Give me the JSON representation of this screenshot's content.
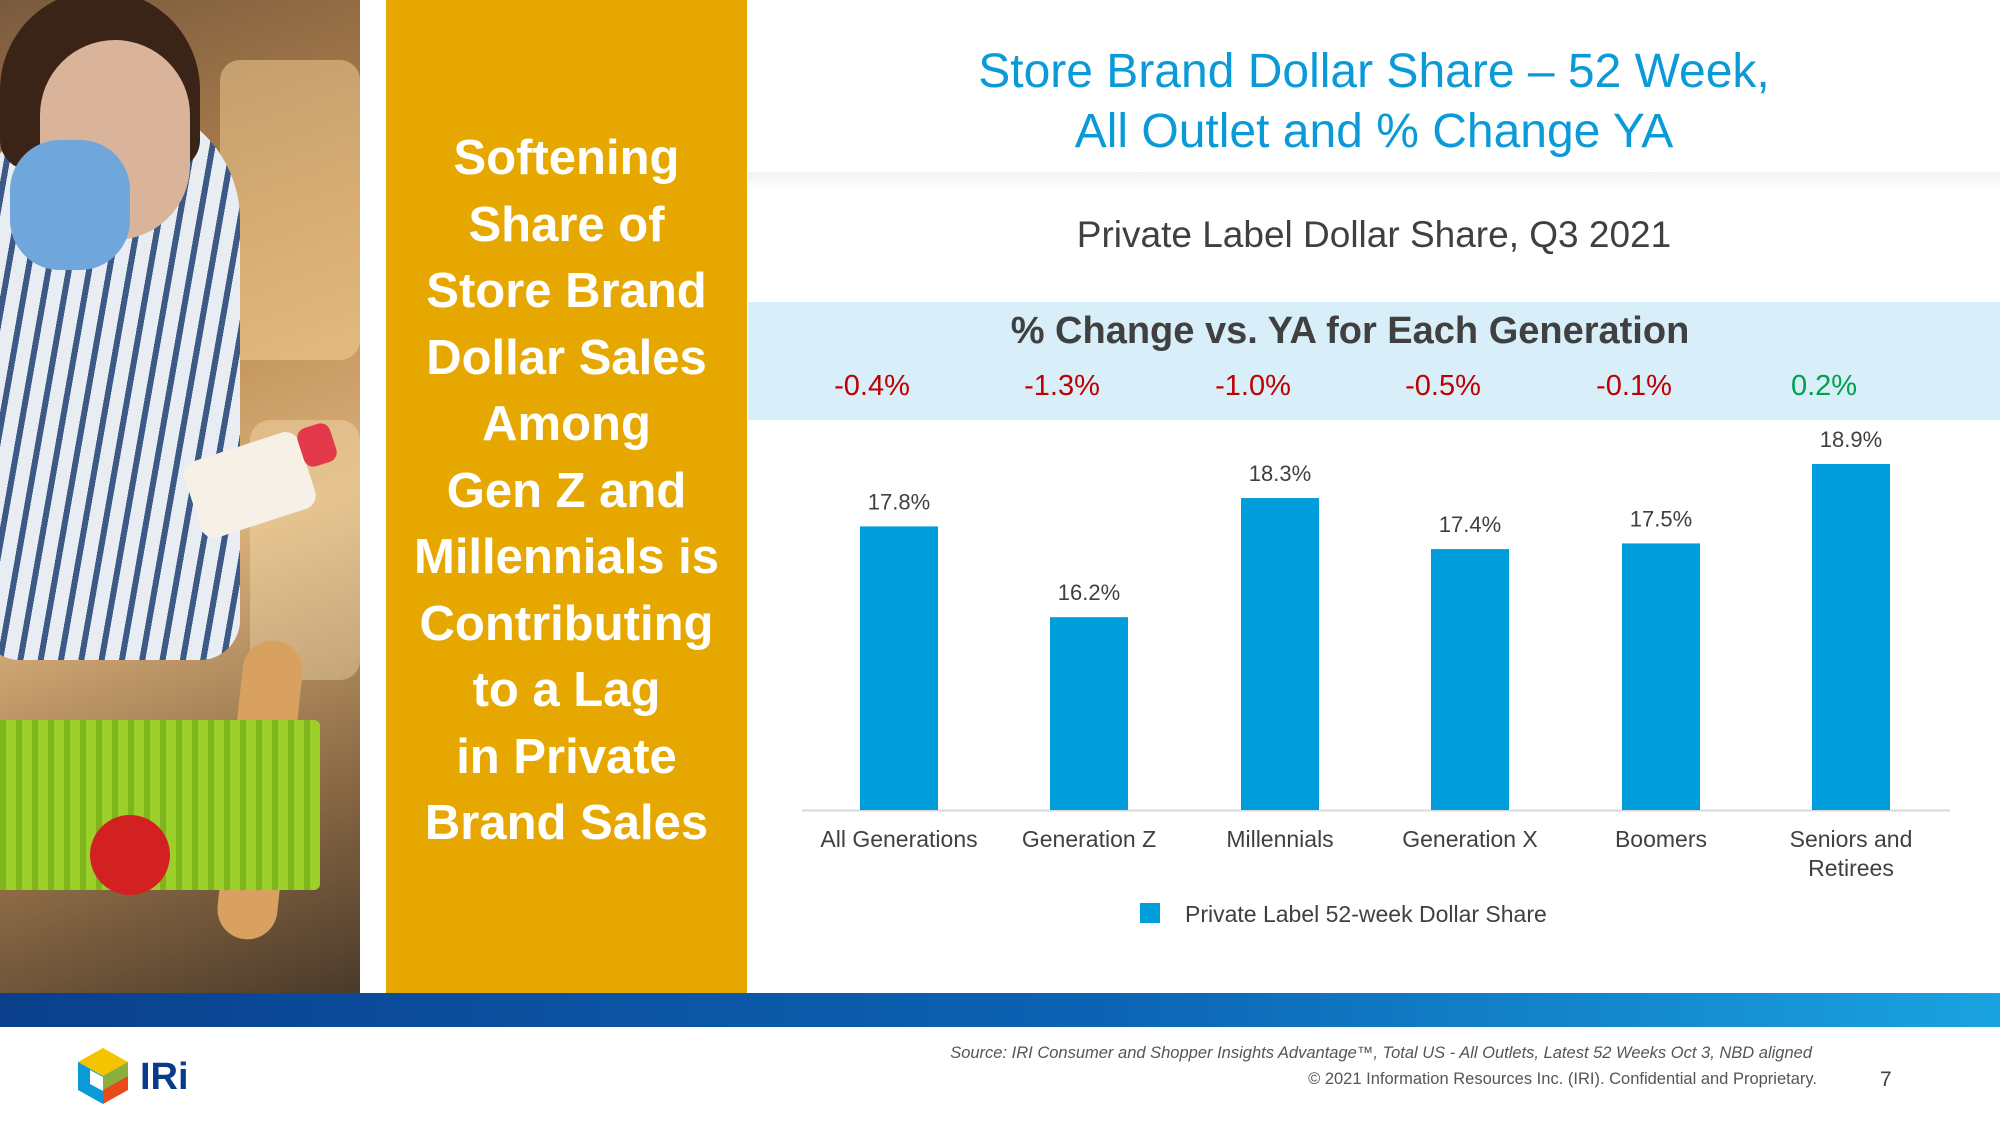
{
  "sidebar": {
    "headline_lines": [
      "Softening",
      "Share of",
      "Store Brand",
      "Dollar Sales",
      "Among",
      "Gen Z and",
      "Millennials is",
      "Contributing",
      "to a Lag",
      "in Private",
      "Brand Sales"
    ]
  },
  "header": {
    "title_line1": "Store Brand Dollar Share – 52 Week,",
    "title_line2": "All Outlet and % Change YA"
  },
  "change_band": {
    "title": "% Change vs. YA for Each Generation",
    "values": [
      "-0.4%",
      "-1.3%",
      "-1.0%",
      "-0.5%",
      "-0.1%",
      "0.2%"
    ]
  },
  "colors": {
    "bar": "#009ddc",
    "negative": "#c00000",
    "positive": "#00a050",
    "accent": "#e6a800"
  },
  "chart_data": {
    "type": "bar",
    "title": "Private Label Dollar Share, Q3 2021",
    "categories": [
      "All Generations",
      "Generation Z",
      "Millennials",
      "Generation X",
      "Boomers",
      "Seniors and Retirees"
    ],
    "category_lines": [
      [
        "All Generations"
      ],
      [
        "Generation Z"
      ],
      [
        "Millennials"
      ],
      [
        "Generation X"
      ],
      [
        "Boomers"
      ],
      [
        "Seniors and",
        "Retirees"
      ]
    ],
    "series": [
      {
        "name": "Private Label 52-week Dollar Share",
        "values": [
          17.8,
          16.2,
          18.3,
          17.4,
          17.5,
          18.9
        ]
      }
    ],
    "data_labels": [
      "17.8%",
      "16.2%",
      "18.3%",
      "17.4%",
      "17.5%",
      "18.9%"
    ],
    "ylim": [
      12.8,
      19.5
    ],
    "legend_position": "bottom"
  },
  "footer": {
    "logo": "IRi",
    "source": "Source: IRI Consumer and Shopper Insights Advantage™, Total US - All Outlets, Latest 52 Weeks Oct 3, NBD aligned",
    "copyright": "© 2021 Information Resources Inc. (IRI). Confidential and Proprietary.",
    "page_number": "7"
  }
}
